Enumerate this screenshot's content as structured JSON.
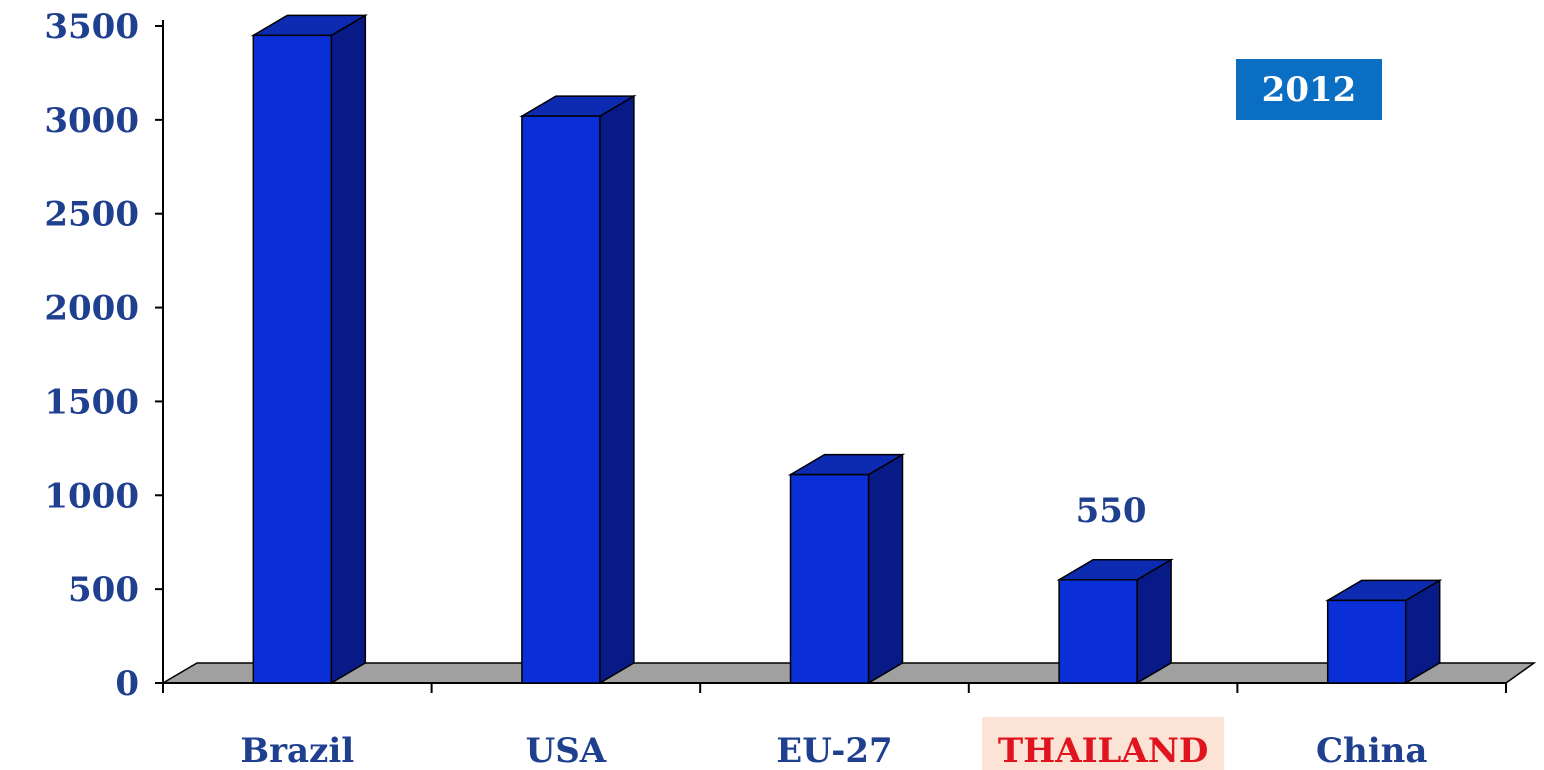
{
  "chart_data": {
    "type": "bar",
    "categories": [
      "Brazil",
      "USA",
      "EU-27",
      "THAILAND",
      "China"
    ],
    "values": [
      3450,
      3020,
      1110,
      550,
      440
    ],
    "highlighted_category": "THAILAND",
    "data_labels": [
      null,
      null,
      null,
      "550",
      null
    ],
    "yticks": [
      "0",
      "500",
      "1000",
      "1500",
      "2000",
      "2500",
      "3000",
      "3500"
    ],
    "ylim": [
      0,
      3500
    ],
    "badge": "2012",
    "title": "",
    "xlabel": "",
    "ylabel": "",
    "grid": false,
    "colors": {
      "bar_front": "#0a2fd6",
      "bar_side": "#071a86",
      "bar_top": "#0c2bb0",
      "axis_text": "#1f3f8f",
      "highlight_text": "#e0141e",
      "highlight_bg": "#fbe4d5",
      "floor": "#a0a0a0",
      "badge_bg": "#0a6fc2"
    }
  }
}
